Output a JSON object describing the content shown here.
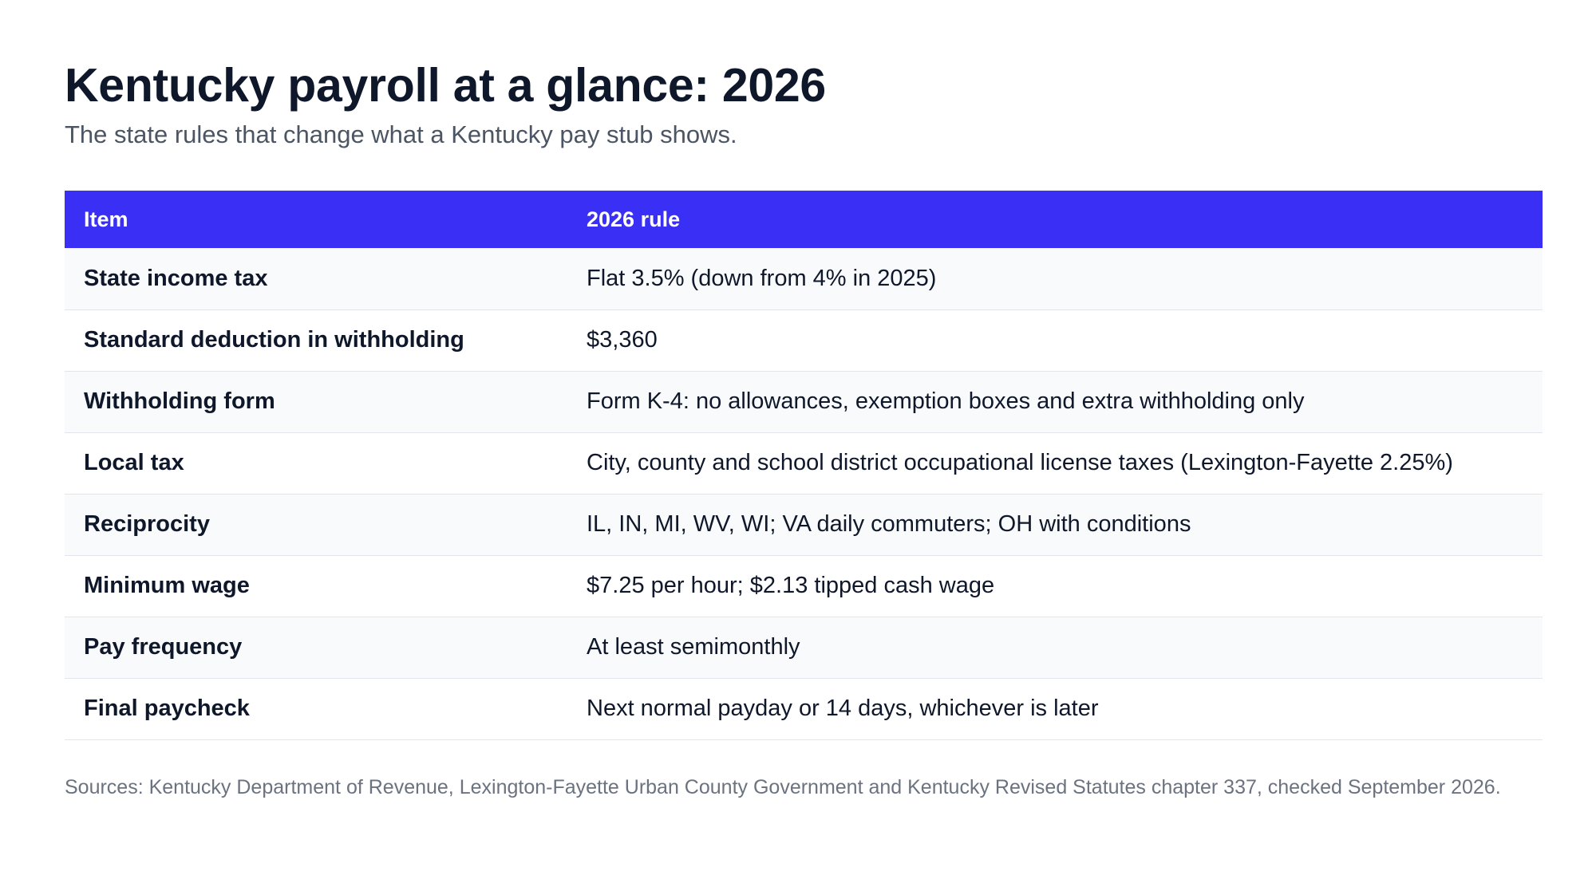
{
  "header": {
    "title": "Kentucky payroll at a glance: 2026",
    "subtitle": "The state rules that change what a Kentucky pay stub shows."
  },
  "table": {
    "columns": [
      "Item",
      "2026 rule"
    ],
    "rows": [
      {
        "item": "State income tax",
        "rule": "Flat 3.5% (down from 4% in 2025)"
      },
      {
        "item": "Standard deduction in withholding",
        "rule": "$3,360"
      },
      {
        "item": "Withholding form",
        "rule": "Form K-4: no allowances, exemption boxes and extra withholding only"
      },
      {
        "item": "Local tax",
        "rule": "City, county and school district occupational license taxes (Lexington-Fayette 2.25%)"
      },
      {
        "item": "Reciprocity",
        "rule": "IL, IN, MI, WV, WI; VA daily commuters; OH with conditions"
      },
      {
        "item": "Minimum wage",
        "rule": "$7.25 per hour; $2.13 tipped cash wage"
      },
      {
        "item": "Pay frequency",
        "rule": "At least semimonthly"
      },
      {
        "item": "Final paycheck",
        "rule": "Next normal payday or 14 days, whichever is later"
      }
    ]
  },
  "footer": {
    "sources": "Sources: Kentucky Department of Revenue, Lexington-Fayette Urban County Government and Kentucky Revised Statutes chapter 337, checked September 2026."
  },
  "colors": {
    "header_bg": "#3a30f5",
    "row_alt_bg": "#f8fafc",
    "title": "#0f172a",
    "subtitle": "#4b5563",
    "sources": "#6b7280"
  }
}
